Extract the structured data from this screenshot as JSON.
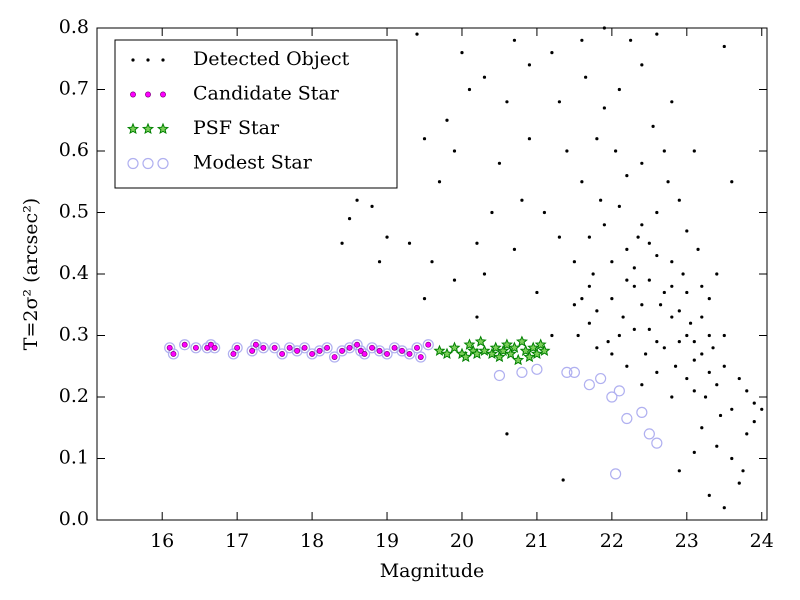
{
  "chart_data": {
    "type": "scatter",
    "xlabel": "Magnitude",
    "ylabel": "T=2σ² (arcsec²)",
    "xlim": [
      15.13,
      24.07
    ],
    "ylim": [
      0,
      0.8
    ],
    "xticks": [
      16,
      17,
      18,
      19,
      20,
      21,
      22,
      23,
      24
    ],
    "yticks": [
      {
        "value": 0,
        "label": "0.0"
      },
      0.1,
      0.2,
      0.3,
      0.4,
      0.5,
      0.6,
      0.7,
      0.8
    ],
    "legend": "upper left",
    "series": [
      {
        "name": "Detected Object",
        "color": "#000000",
        "marker": "dot",
        "x": [
          18.4,
          18.5,
          18.6,
          18.8,
          18.9,
          19,
          19.3,
          19.6,
          19.5,
          19.7,
          19.8,
          19.9,
          20.1,
          20.2,
          20.3,
          20.4,
          20.5,
          20.6,
          20.7,
          20.8,
          20.9,
          21,
          21.1,
          21.2,
          19.4,
          20,
          20.3,
          20.7,
          20.9,
          21.3,
          20.6,
          21.35,
          19.5,
          19.9,
          20.2,
          21.5,
          21.6,
          21.7,
          21.8,
          21.9,
          22,
          22.1,
          22.2,
          22.3,
          22.4,
          22.5,
          22.6,
          22.7,
          22.8,
          22.9,
          23,
          23.1,
          23.2,
          23.3,
          23.4,
          21.55,
          21.65,
          21.75,
          21.85,
          21.95,
          22.05,
          22.15,
          22.25,
          22.35,
          22.45,
          22.55,
          22.65,
          22.75,
          22.85,
          22.95,
          23.05,
          23.15,
          23.25,
          23.35,
          23.45,
          21.6,
          21.7,
          21.8,
          21.9,
          22,
          22.1,
          22.2,
          22.3,
          22.4,
          22.5,
          22.6,
          22.7,
          22.8,
          22.9,
          23,
          23.1,
          23.2,
          23.3,
          23.5,
          23.6,
          22.2,
          22.4,
          22.6,
          22.8,
          23,
          23.2,
          23.4,
          23.6,
          23.7,
          23.8,
          23.9,
          23.5,
          23.3,
          22.9,
          23.1,
          23.7,
          23.5,
          23.4,
          23.6,
          23.5,
          21.6,
          21.9,
          22.4,
          22.8,
          23.1,
          22.6,
          21.4,
          21.5,
          21.3,
          21.2,
          23.8,
          23.9,
          24,
          23.75,
          22.1,
          22.3,
          22.7,
          22.5,
          23,
          22.9,
          21.7,
          21.8,
          22,
          22.2,
          22.4,
          22.6,
          22.8,
          23.2,
          23.3,
          23.1
        ],
        "values": [
          0.45,
          0.49,
          0.52,
          0.51,
          0.42,
          0.46,
          0.45,
          0.42,
          0.62,
          0.55,
          0.65,
          0.6,
          0.7,
          0.45,
          0.4,
          0.5,
          0.58,
          0.68,
          0.44,
          0.52,
          0.62,
          0.37,
          0.5,
          0.76,
          0.79,
          0.76,
          0.72,
          0.78,
          0.74,
          0.68,
          0.14,
          0.065,
          0.36,
          0.39,
          0.33,
          0.42,
          0.55,
          0.32,
          0.62,
          0.48,
          0.36,
          0.7,
          0.44,
          0.31,
          0.58,
          0.39,
          0.5,
          0.28,
          0.42,
          0.34,
          0.47,
          0.26,
          0.38,
          0.3,
          0.22,
          0.3,
          0.72,
          0.4,
          0.52,
          0.29,
          0.6,
          0.33,
          0.78,
          0.46,
          0.27,
          0.64,
          0.35,
          0.55,
          0.25,
          0.4,
          0.32,
          0.44,
          0.2,
          0.28,
          0.17,
          0.36,
          0.46,
          0.28,
          0.67,
          0.42,
          0.3,
          0.56,
          0.38,
          0.48,
          0.31,
          0.43,
          0.6,
          0.33,
          0.29,
          0.37,
          0.21,
          0.27,
          0.36,
          0.25,
          0.18,
          0.25,
          0.22,
          0.24,
          0.2,
          0.23,
          0.15,
          0.12,
          0.1,
          0.06,
          0.14,
          0.19,
          0.02,
          0.04,
          0.08,
          0.11,
          0.23,
          0.3,
          0.4,
          0.55,
          0.77,
          0.78,
          0.8,
          0.74,
          0.68,
          0.6,
          0.79,
          0.6,
          0.35,
          0.46,
          0.3,
          0.21,
          0.16,
          0.18,
          0.08,
          0.51,
          0.41,
          0.37,
          0.45,
          0.3,
          0.52,
          0.38,
          0.34,
          0.27,
          0.39,
          0.35,
          0.29,
          0.38,
          0.33,
          0.24,
          0.29
        ]
      },
      {
        "name": "Candidate Star",
        "color": "#ff00ff",
        "marker": "circle",
        "x": [
          16.1,
          16.15,
          16.3,
          16.45,
          16.6,
          16.65,
          16.7,
          16.95,
          17.0,
          17.2,
          17.25,
          17.35,
          17.5,
          17.6,
          17.7,
          17.8,
          17.9,
          18.0,
          18.1,
          18.2,
          18.3,
          18.4,
          18.5,
          18.6,
          18.65,
          18.7,
          18.8,
          18.9,
          19.0,
          19.1,
          19.2,
          19.3,
          19.4,
          19.45,
          19.55
        ],
        "values": [
          0.28,
          0.27,
          0.285,
          0.28,
          0.28,
          0.285,
          0.28,
          0.27,
          0.28,
          0.275,
          0.285,
          0.28,
          0.28,
          0.27,
          0.28,
          0.275,
          0.28,
          0.27,
          0.275,
          0.28,
          0.265,
          0.275,
          0.28,
          0.285,
          0.275,
          0.27,
          0.28,
          0.275,
          0.27,
          0.28,
          0.275,
          0.27,
          0.28,
          0.265,
          0.285
        ]
      },
      {
        "name": "PSF Star",
        "color": "#008000",
        "marker": "star",
        "x": [
          19.7,
          19.8,
          19.9,
          20.0,
          20.05,
          20.1,
          20.15,
          20.2,
          20.25,
          20.3,
          20.4,
          20.45,
          20.5,
          20.55,
          20.6,
          20.65,
          20.7,
          20.75,
          20.8,
          20.85,
          20.9,
          20.95,
          21.0,
          21.05,
          21.1
        ],
        "values": [
          0.275,
          0.27,
          0.28,
          0.27,
          0.265,
          0.285,
          0.275,
          0.27,
          0.29,
          0.275,
          0.27,
          0.28,
          0.265,
          0.275,
          0.285,
          0.27,
          0.28,
          0.26,
          0.29,
          0.275,
          0.265,
          0.28,
          0.27,
          0.285,
          0.275
        ]
      },
      {
        "name": "Modest Star",
        "color": "#b0b0f0",
        "marker": "open-circle",
        "x": [
          16.1,
          16.15,
          16.3,
          16.45,
          16.6,
          16.65,
          16.7,
          16.95,
          17.0,
          17.2,
          17.25,
          17.35,
          17.5,
          17.6,
          17.7,
          17.8,
          17.9,
          18.0,
          18.1,
          18.2,
          18.3,
          18.4,
          18.5,
          18.6,
          18.65,
          18.7,
          18.8,
          18.9,
          19.0,
          19.1,
          19.2,
          19.3,
          19.4,
          19.45,
          19.55,
          20.5,
          20.8,
          21.0,
          21.4,
          21.5,
          21.7,
          21.85,
          22.0,
          22.1,
          22.2,
          22.4,
          22.5,
          22.6,
          22.05
        ],
        "values": [
          0.28,
          0.27,
          0.285,
          0.28,
          0.28,
          0.285,
          0.28,
          0.27,
          0.28,
          0.275,
          0.285,
          0.28,
          0.28,
          0.27,
          0.28,
          0.275,
          0.28,
          0.27,
          0.275,
          0.28,
          0.265,
          0.275,
          0.28,
          0.285,
          0.275,
          0.27,
          0.28,
          0.275,
          0.27,
          0.28,
          0.275,
          0.27,
          0.28,
          0.265,
          0.285,
          0.235,
          0.24,
          0.245,
          0.24,
          0.24,
          0.22,
          0.23,
          0.2,
          0.21,
          0.165,
          0.175,
          0.14,
          0.125,
          0.075
        ]
      }
    ]
  }
}
